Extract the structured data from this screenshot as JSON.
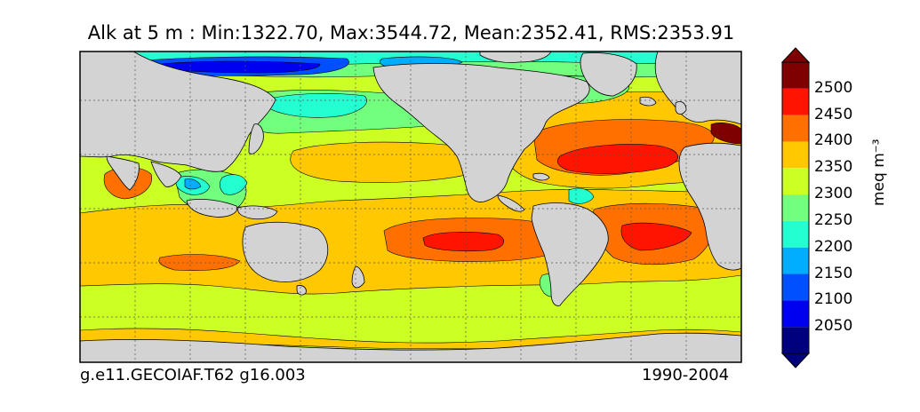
{
  "map": {
    "title": "Alk at 5 m : Min:1322.70, Max:3544.72, Mean:2352.41, RMS:2353.91",
    "footer_left": "g.e11.GECOIAF.T62 g16.003",
    "footer_right": "1990-2004",
    "graticule": {
      "lon_step_deg": 30,
      "lat_step_deg": 15
    },
    "land_color": "#d3d3d3"
  },
  "colorbar": {
    "units_label": "meq m⁻³",
    "labels": [
      "2500",
      "2450",
      "2400",
      "2350",
      "2300",
      "2250",
      "2200",
      "2150",
      "2100",
      "2050"
    ],
    "colors": [
      "#7f0000",
      "#ff1400",
      "#ff7000",
      "#ffc800",
      "#ccff24",
      "#72ff7d",
      "#24ffd2",
      "#00adff",
      "#0050ff",
      "#0000f1",
      "#00007f"
    ],
    "extend": "both"
  }
}
